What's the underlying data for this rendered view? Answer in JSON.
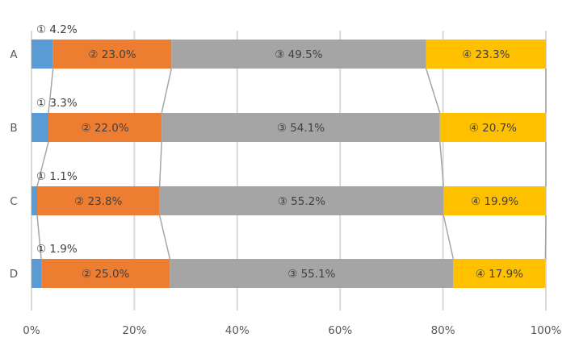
{
  "chart_data": {
    "type": "bar",
    "orientation": "horizontal",
    "stacked": "percent",
    "title": "",
    "xlabel": "",
    "ylabel": "",
    "categories": [
      "A",
      "B",
      "C",
      "D"
    ],
    "series": [
      {
        "name": "①",
        "marker": "①",
        "color": "#5B9BD5",
        "values": [
          4.2,
          3.3,
          1.1,
          1.9
        ]
      },
      {
        "name": "②",
        "marker": "②",
        "color": "#ED7D31",
        "values": [
          23.0,
          22.0,
          23.8,
          25.0
        ]
      },
      {
        "name": "③",
        "marker": "③",
        "color": "#A5A5A5",
        "values": [
          49.5,
          54.1,
          55.2,
          55.1
        ]
      },
      {
        "name": "④",
        "marker": "④",
        "color": "#FFC000",
        "values": [
          23.3,
          20.7,
          19.9,
          17.9
        ]
      }
    ],
    "data_labels": [
      [
        "① 4.2%",
        "② 23.0%",
        "③ 49.5%",
        "④ 23.3%"
      ],
      [
        "① 3.3%",
        "② 22.0%",
        "③ 54.1%",
        "④ 20.7%"
      ],
      [
        "① 1.1%",
        "② 23.8%",
        "③ 55.2%",
        "④ 19.9%"
      ],
      [
        "① 1.9%",
        "② 25.0%",
        "③ 55.1%",
        "④ 17.9%"
      ]
    ],
    "xticks": [
      "0%",
      "20%",
      "40%",
      "60%",
      "80%",
      "100%"
    ],
    "xlim": [
      0,
      100
    ],
    "grid": "vertical",
    "series_lines": true,
    "legend": "none"
  }
}
